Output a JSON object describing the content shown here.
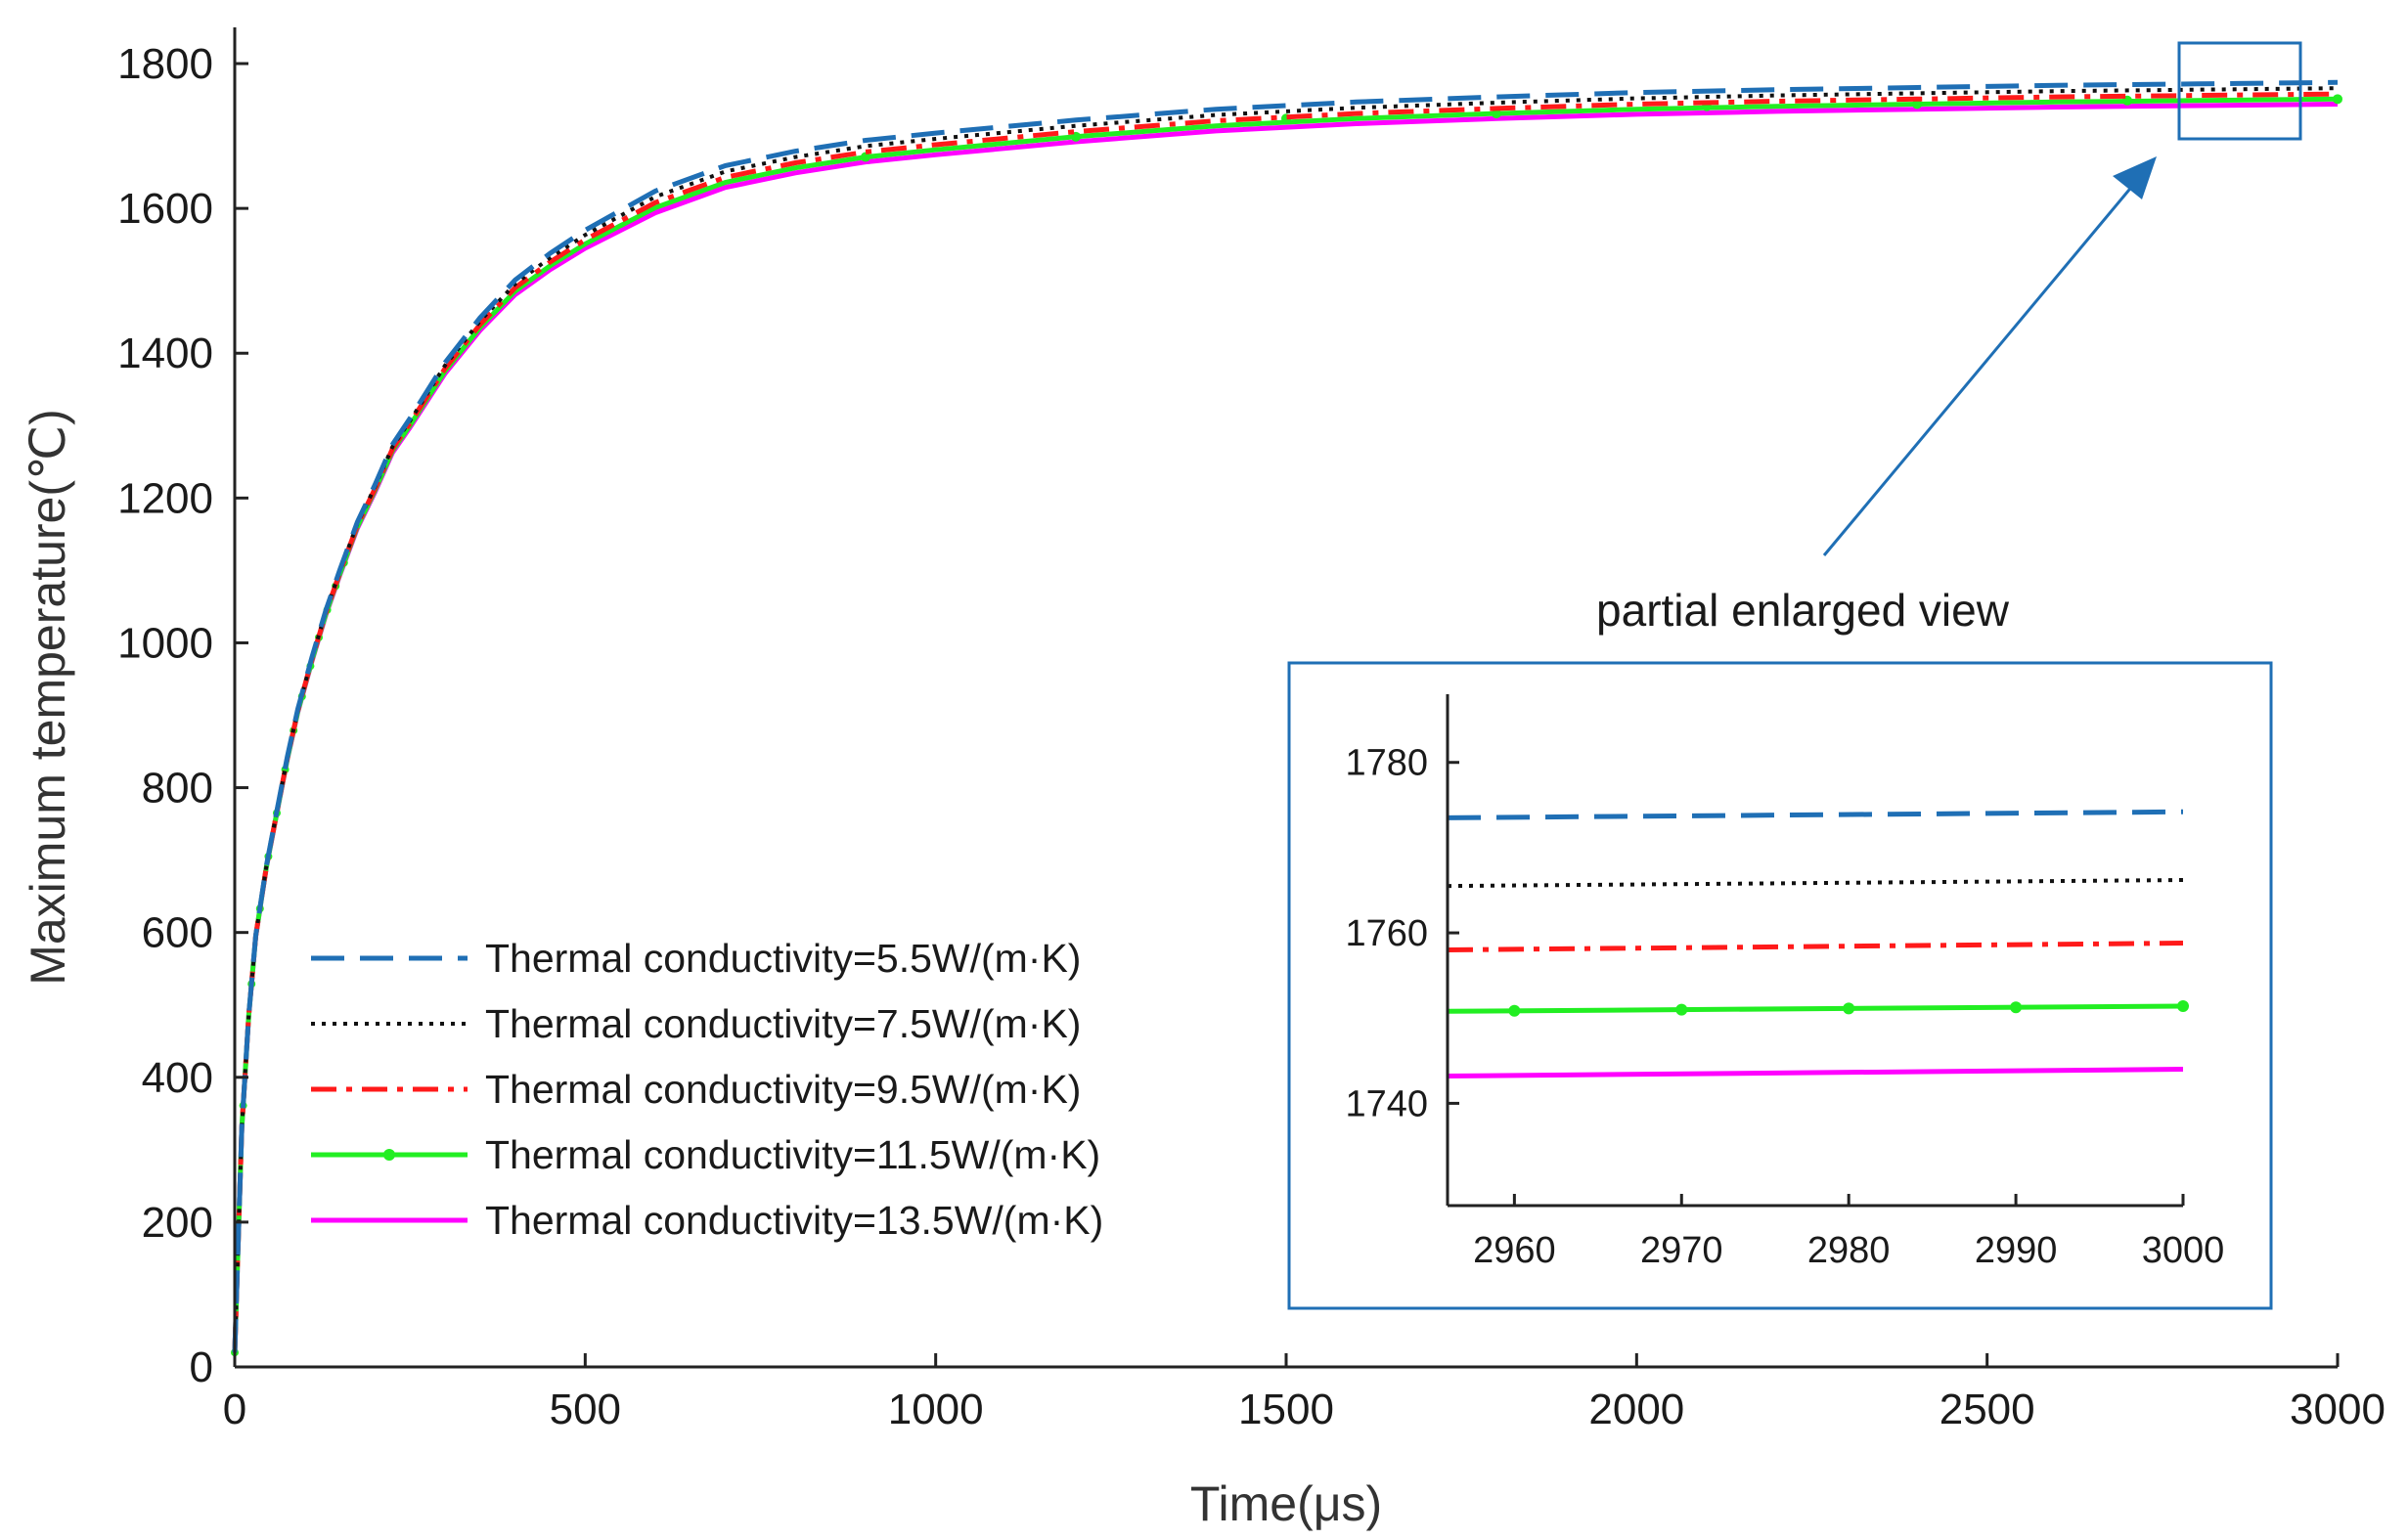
{
  "chart_data": {
    "type": "line",
    "title": "",
    "xlabel": "Time(μs)",
    "ylabel": "Maximum temperature(℃)",
    "xlim": [
      0,
      3000
    ],
    "ylim": [
      0,
      1850
    ],
    "xticks": [
      0,
      500,
      1000,
      1500,
      2000,
      2500,
      3000
    ],
    "yticks": [
      0,
      200,
      400,
      600,
      800,
      1000,
      1200,
      1400,
      1600,
      1800
    ],
    "grid": false,
    "legend_position": "lower-left",
    "x": [
      0,
      10,
      20,
      30,
      45,
      60,
      75,
      90,
      110,
      130,
      150,
      175,
      200,
      225,
      250,
      300,
      350,
      400,
      450,
      500,
      600,
      700,
      800,
      900,
      1000,
      1200,
      1400,
      1600,
      1800,
      2000,
      2200,
      2400,
      2600,
      2800,
      3000
    ],
    "base_curve": [
      20,
      330,
      485,
      595,
      690,
      765,
      840,
      905,
      975,
      1040,
      1095,
      1160,
      1210,
      1265,
      1300,
      1375,
      1435,
      1485,
      1520,
      1550,
      1600,
      1635,
      1655,
      1670,
      1680,
      1698,
      1713,
      1723,
      1730,
      1736,
      1740,
      1743,
      1746,
      1748,
      1750
    ],
    "series": [
      {
        "name": "Thermal conductivity=5.5W/(m·K)",
        "color": "#1f6fb5",
        "style": "dashed",
        "final_value": 1774,
        "offset": 24
      },
      {
        "name": "Thermal conductivity=7.5W/(m·K)",
        "color": "#111111",
        "style": "dotted",
        "final_value": 1766,
        "offset": 16
      },
      {
        "name": "Thermal conductivity=9.5W/(m·K)",
        "color": "#ff1a1a",
        "style": "dashdot",
        "final_value": 1758,
        "offset": 8
      },
      {
        "name": "Thermal conductivity=11.5W/(m·K)",
        "color": "#22ee22",
        "style": "solid-marker",
        "final_value": 1751,
        "offset": 1
      },
      {
        "name": "Thermal conductivity=13.5W/(m·K)",
        "color": "#ff00ff",
        "style": "solid",
        "final_value": 1744,
        "offset": -6
      }
    ],
    "annotation": "partial enlarged view",
    "inset": {
      "title": "partial enlarged view",
      "xlim": [
        2956,
        3000
      ],
      "ylim": [
        1728,
        1788
      ],
      "xticks": [
        2960,
        2970,
        2980,
        2990,
        3000
      ],
      "yticks": [
        1740,
        1760,
        1780
      ],
      "series_values": [
        {
          "start": 1773.5,
          "end": 1774.2
        },
        {
          "start": 1765.5,
          "end": 1766.2
        },
        {
          "start": 1758.0,
          "end": 1758.8
        },
        {
          "start": 1750.8,
          "end": 1751.4
        },
        {
          "start": 1743.2,
          "end": 1744.0
        }
      ],
      "marker_x": [
        2960,
        2970,
        2980,
        2990,
        3000
      ]
    }
  }
}
